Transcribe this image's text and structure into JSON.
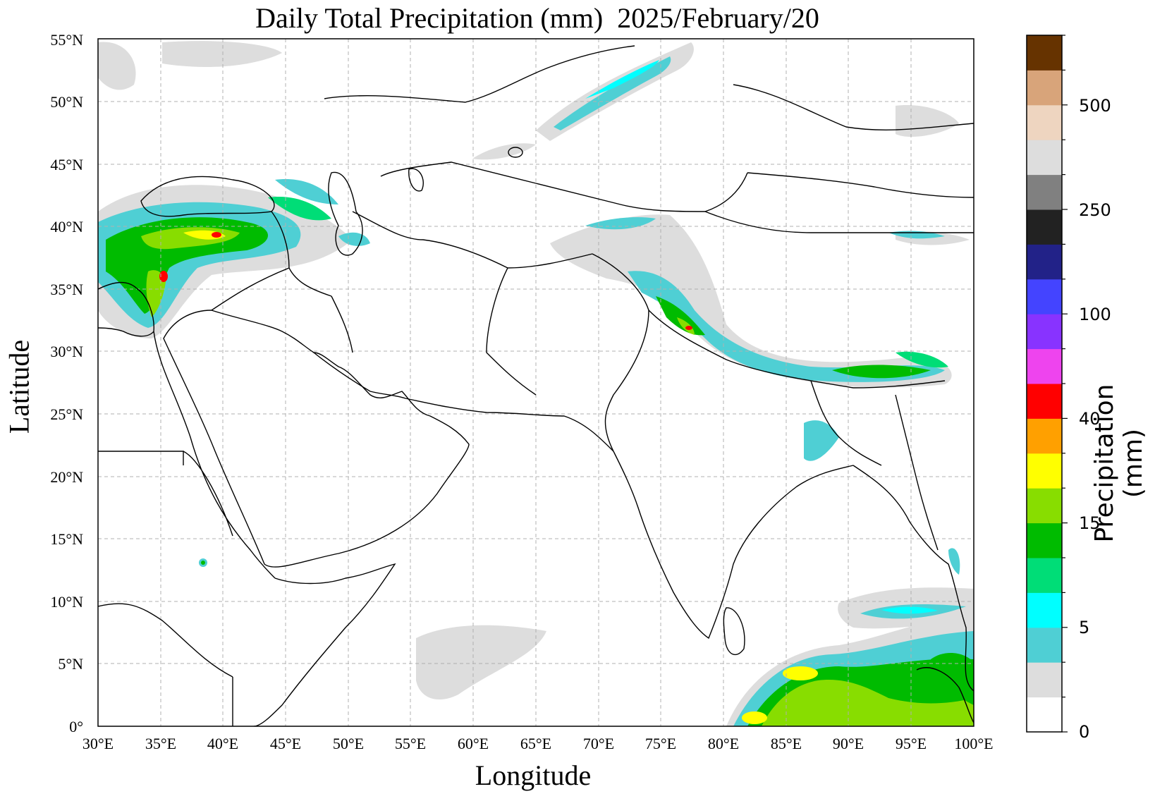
{
  "title": "Daily Total Precipitation (mm)  2025/February/20",
  "xlabel": "Longitude",
  "ylabel": "Latitude",
  "colorbar_label": "Precipitation (mm)",
  "lon_ticks": [
    "30°E",
    "35°E",
    "40°E",
    "45°E",
    "50°E",
    "55°E",
    "60°E",
    "65°E",
    "70°E",
    "75°E",
    "80°E",
    "85°E",
    "90°E",
    "95°E",
    "100°E"
  ],
  "lat_ticks": [
    "0°",
    "5°N",
    "10°N",
    "15°N",
    "20°N",
    "25°N",
    "30°N",
    "35°N",
    "40°N",
    "45°N",
    "50°N",
    "55°N"
  ],
  "colorbar": {
    "colors": [
      "#ffffff",
      "#dddddd",
      "#4fcfd4",
      "#00ffff",
      "#00dd77",
      "#00bb00",
      "#88dd00",
      "#ffff00",
      "#ffa000",
      "#ff0000",
      "#ee44ee",
      "#8833ff",
      "#4444ff",
      "#222288",
      "#222222",
      "#808080",
      "#dddddd",
      "#eed5c0",
      "#d8a47a",
      "#663300"
    ],
    "labels": [
      "0",
      "5",
      "15",
      "40",
      "100",
      "250",
      "500"
    ]
  },
  "map": {
    "lon_range": [
      30,
      100
    ],
    "lat_range": [
      0,
      55
    ],
    "grid": true
  }
}
